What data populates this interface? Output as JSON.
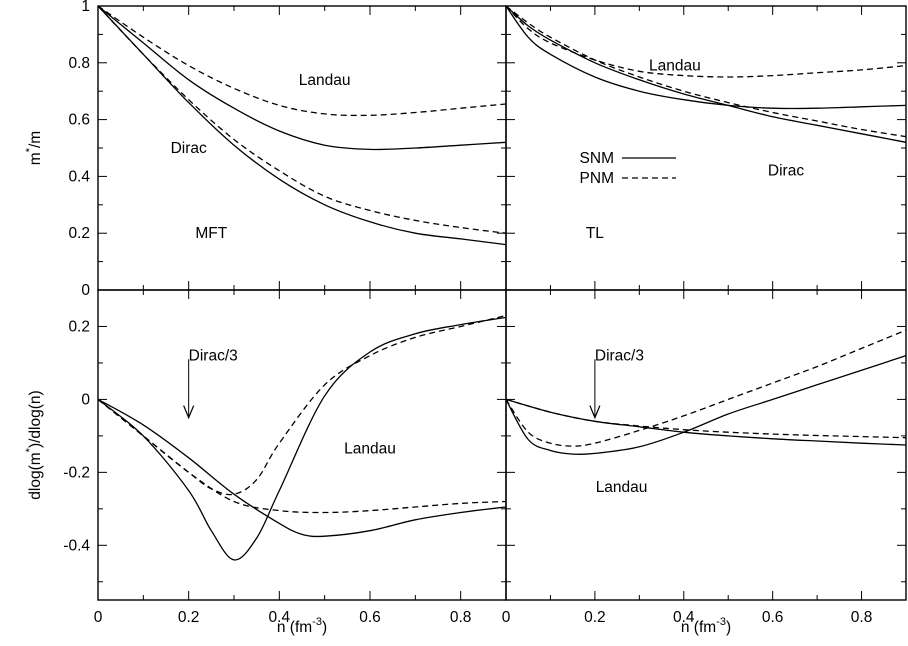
{
  "chart_data": [
    {
      "type": "line",
      "panel": "top-left",
      "ylabel": "m*/m",
      "xlim": [
        0,
        0.9
      ],
      "ylim": [
        0,
        1
      ],
      "y_ticks": [
        "0",
        "0.2",
        "0.4",
        "0.6",
        "0.8",
        "1"
      ],
      "annotations": [
        "Landau",
        "Dirac",
        "MFT"
      ],
      "series": [
        {
          "style": "dashed",
          "x": [
            0,
            0.1,
            0.2,
            0.3,
            0.4,
            0.5,
            0.6,
            0.7,
            0.8,
            0.9
          ],
          "y": [
            1,
            0.89,
            0.79,
            0.71,
            0.65,
            0.62,
            0.615,
            0.625,
            0.64,
            0.655
          ]
        },
        {
          "style": "solid",
          "x": [
            0,
            0.1,
            0.2,
            0.3,
            0.4,
            0.5,
            0.6,
            0.7,
            0.8,
            0.9
          ],
          "y": [
            1,
            0.87,
            0.74,
            0.64,
            0.56,
            0.51,
            0.495,
            0.5,
            0.51,
            0.52
          ]
        },
        {
          "style": "dashed",
          "x": [
            0,
            0.1,
            0.2,
            0.3,
            0.4,
            0.5,
            0.6,
            0.7,
            0.8,
            0.9
          ],
          "y": [
            1,
            0.83,
            0.67,
            0.53,
            0.42,
            0.33,
            0.28,
            0.245,
            0.22,
            0.2
          ]
        },
        {
          "style": "solid",
          "x": [
            0,
            0.1,
            0.2,
            0.3,
            0.4,
            0.5,
            0.6,
            0.7,
            0.8,
            0.9
          ],
          "y": [
            1,
            0.83,
            0.66,
            0.51,
            0.39,
            0.3,
            0.24,
            0.2,
            0.18,
            0.16
          ]
        }
      ]
    },
    {
      "type": "line",
      "panel": "top-right",
      "xlim": [
        0,
        0.9
      ],
      "ylim": [
        0,
        1
      ],
      "annotations": [
        "Landau",
        "Dirac",
        "TL"
      ],
      "legend": [
        {
          "label": "SNM",
          "style": "solid"
        },
        {
          "label": "PNM",
          "style": "dashed"
        }
      ],
      "series": [
        {
          "style": "dashed",
          "x": [
            0,
            0.05,
            0.1,
            0.2,
            0.3,
            0.4,
            0.5,
            0.6,
            0.7,
            0.8,
            0.9
          ],
          "y": [
            1,
            0.92,
            0.87,
            0.81,
            0.77,
            0.755,
            0.75,
            0.755,
            0.765,
            0.775,
            0.79
          ]
        },
        {
          "style": "solid",
          "x": [
            0,
            0.05,
            0.1,
            0.2,
            0.3,
            0.4,
            0.5,
            0.6,
            0.7,
            0.8,
            0.9
          ],
          "y": [
            1,
            0.89,
            0.83,
            0.75,
            0.7,
            0.67,
            0.65,
            0.64,
            0.64,
            0.645,
            0.65
          ]
        },
        {
          "style": "solid",
          "x": [
            0,
            0.05,
            0.1,
            0.2,
            0.3,
            0.4,
            0.5,
            0.6,
            0.7,
            0.8,
            0.9
          ],
          "y": [
            1,
            0.93,
            0.88,
            0.8,
            0.74,
            0.69,
            0.65,
            0.61,
            0.58,
            0.55,
            0.52
          ]
        },
        {
          "style": "dashed",
          "x": [
            0,
            0.05,
            0.1,
            0.2,
            0.3,
            0.4,
            0.5,
            0.6,
            0.7,
            0.8,
            0.9
          ],
          "y": [
            1,
            0.94,
            0.89,
            0.81,
            0.75,
            0.7,
            0.66,
            0.625,
            0.595,
            0.565,
            0.54
          ]
        }
      ]
    },
    {
      "type": "line",
      "panel": "bottom-left",
      "ylabel": "dlog(m*)/dlog(n)",
      "xlabel": "n (fm-3)",
      "xlim": [
        0,
        0.9
      ],
      "ylim": [
        -0.55,
        0.3
      ],
      "x_ticks": [
        "0",
        "0.2",
        "0.4",
        "0.6",
        "0.8"
      ],
      "y_ticks": [
        "-0.4",
        "-0.2",
        "0",
        "0.2"
      ],
      "annotations": [
        "Dirac/3",
        "Landau"
      ],
      "series": [
        {
          "style": "solid",
          "x": [
            0,
            0.1,
            0.2,
            0.25,
            0.3,
            0.35,
            0.4,
            0.5,
            0.6,
            0.7,
            0.8,
            0.9
          ],
          "y": [
            0,
            -0.1,
            -0.25,
            -0.36,
            -0.44,
            -0.38,
            -0.25,
            0.01,
            0.13,
            0.18,
            0.205,
            0.225
          ]
        },
        {
          "style": "dashed",
          "x": [
            0,
            0.1,
            0.2,
            0.25,
            0.3,
            0.35,
            0.4,
            0.5,
            0.6,
            0.7,
            0.8,
            0.9
          ],
          "y": [
            0,
            -0.1,
            -0.2,
            -0.245,
            -0.26,
            -0.22,
            -0.12,
            0.04,
            0.12,
            0.17,
            0.2,
            0.23
          ]
        },
        {
          "style": "solid",
          "x": [
            0,
            0.1,
            0.2,
            0.3,
            0.4,
            0.45,
            0.5,
            0.6,
            0.7,
            0.8,
            0.9
          ],
          "y": [
            0,
            -0.07,
            -0.16,
            -0.26,
            -0.34,
            -0.37,
            -0.375,
            -0.36,
            -0.33,
            -0.31,
            -0.295
          ]
        },
        {
          "style": "dashed",
          "x": [
            0,
            0.1,
            0.2,
            0.3,
            0.4,
            0.5,
            0.6,
            0.7,
            0.8,
            0.9
          ],
          "y": [
            0,
            -0.1,
            -0.2,
            -0.28,
            -0.305,
            -0.31,
            -0.305,
            -0.295,
            -0.285,
            -0.28
          ]
        }
      ]
    },
    {
      "type": "line",
      "panel": "bottom-right",
      "xlabel": "n (fm-3)",
      "xlim": [
        0,
        0.9
      ],
      "ylim": [
        -0.55,
        0.3
      ],
      "x_ticks": [
        "0",
        "0.2",
        "0.4",
        "0.6",
        "0.8"
      ],
      "annotations": [
        "Dirac/3",
        "Landau"
      ],
      "series": [
        {
          "style": "solid",
          "x": [
            0,
            0.05,
            0.1,
            0.15,
            0.2,
            0.3,
            0.4,
            0.5,
            0.6,
            0.7,
            0.8,
            0.9
          ],
          "y": [
            0,
            -0.11,
            -0.14,
            -0.15,
            -0.148,
            -0.13,
            -0.09,
            -0.04,
            0,
            0.04,
            0.08,
            0.12
          ]
        },
        {
          "style": "dashed",
          "x": [
            0,
            0.05,
            0.1,
            0.15,
            0.2,
            0.3,
            0.4,
            0.5,
            0.6,
            0.7,
            0.8,
            0.9
          ],
          "y": [
            0,
            -0.09,
            -0.12,
            -0.128,
            -0.12,
            -0.085,
            -0.045,
            0,
            0.045,
            0.09,
            0.14,
            0.19
          ]
        },
        {
          "style": "solid",
          "x": [
            0,
            0.1,
            0.2,
            0.3,
            0.4,
            0.5,
            0.6,
            0.7,
            0.8,
            0.9
          ],
          "y": [
            0,
            -0.035,
            -0.06,
            -0.075,
            -0.09,
            -0.1,
            -0.108,
            -0.114,
            -0.12,
            -0.125
          ]
        },
        {
          "style": "dashed",
          "x": [
            0,
            0.1,
            0.2,
            0.3,
            0.4,
            0.5,
            0.6,
            0.7,
            0.8,
            0.9
          ],
          "y": [
            0,
            -0.035,
            -0.06,
            -0.073,
            -0.083,
            -0.09,
            -0.095,
            -0.099,
            -0.102,
            -0.105
          ]
        }
      ]
    }
  ]
}
